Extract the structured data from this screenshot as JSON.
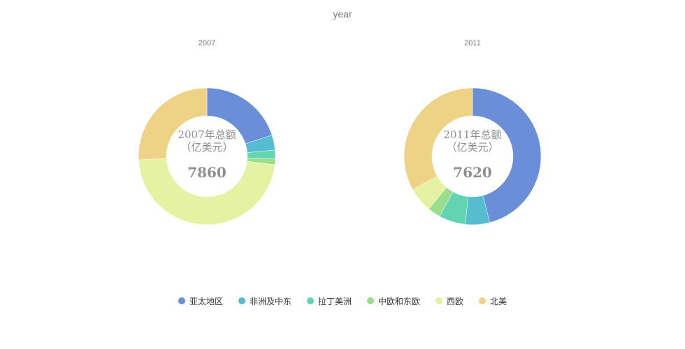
{
  "chart_data": {
    "type": "pie",
    "title": "year",
    "legend_position": "bottom",
    "categories": [
      "亚太地区",
      "非洲及中东",
      "拉丁美洲",
      "中欧和东欧",
      "西欧",
      "北美"
    ],
    "colors": [
      "#6a8fd8",
      "#56bcd0",
      "#62d4b2",
      "#98de8c",
      "#e4f2a2",
      "#eed387"
    ],
    "charts": [
      {
        "title": "2007",
        "center_label": "2007年总额\n（亿美元）",
        "total": "7860",
        "values": [
          1570,
          280,
          160,
          110,
          3710,
          2030
        ]
      },
      {
        "title": "2011",
        "center_label": "2011年总额\n（亿美元）",
        "total": "7620",
        "values": [
          3500,
          440,
          480,
          230,
          450,
          2520
        ]
      }
    ]
  }
}
